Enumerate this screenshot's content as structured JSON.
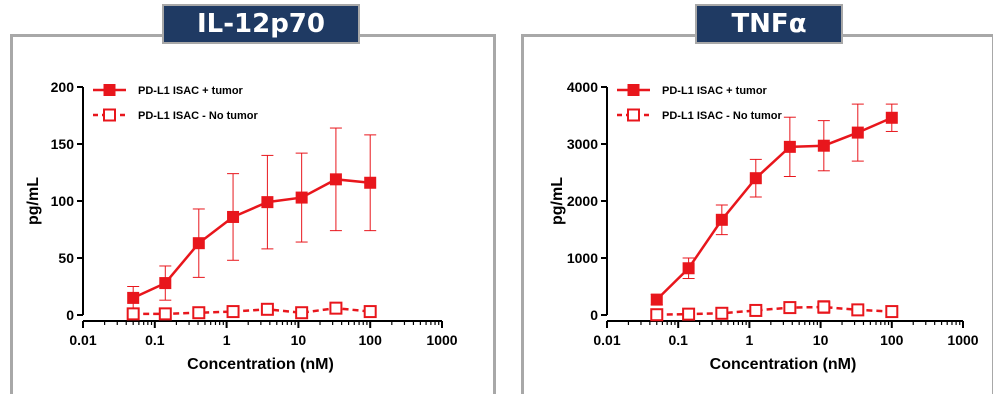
{
  "chart_data": [
    {
      "type": "line",
      "title": "IL-12p70",
      "xlabel": "Concentration (nM)",
      "ylabel": "pg/mL",
      "xscale": "log",
      "xlim": [
        0.01,
        1000
      ],
      "ylim": [
        0,
        200
      ],
      "x_ticks": [
        0.01,
        0.1,
        1,
        10,
        100,
        1000
      ],
      "x_tick_labels": [
        "0.01",
        "0.1",
        "1",
        "10",
        "100",
        "1000"
      ],
      "y_ticks": [
        0,
        50,
        100,
        150,
        200
      ],
      "y_tick_labels": [
        "0",
        "50",
        "100",
        "150",
        "200"
      ],
      "grid": false,
      "legend": "top-left",
      "colors": {
        "series": "#e8161c",
        "frame": "#a8a8a8",
        "title_bg": "#1f3a63"
      },
      "series": [
        {
          "name": "PD-L1 ISAC + tumor",
          "marker": "filled-square",
          "line": "solid",
          "x": [
            0.05,
            0.14,
            0.41,
            1.23,
            3.7,
            11.1,
            33.3,
            100
          ],
          "y": [
            15,
            28,
            63,
            86,
            99,
            103,
            119,
            116
          ],
          "err": [
            10,
            15,
            30,
            38,
            41,
            39,
            45,
            42
          ]
        },
        {
          "name": "PD-L1 ISAC - No tumor",
          "marker": "open-square",
          "line": "dashed",
          "x": [
            0.05,
            0.14,
            0.41,
            1.23,
            3.7,
            11.1,
            33.3,
            100
          ],
          "y": [
            1,
            1,
            2,
            3,
            5,
            2,
            6,
            3
          ],
          "err": [
            0,
            0,
            0,
            1,
            1,
            0,
            1,
            0
          ]
        }
      ]
    },
    {
      "type": "line",
      "title": "TNFα",
      "xlabel": "Concentration (nM)",
      "ylabel": "pg/mL",
      "xscale": "log",
      "xlim": [
        0.01,
        1000
      ],
      "ylim": [
        0,
        4000
      ],
      "x_ticks": [
        0.01,
        0.1,
        1,
        10,
        100,
        1000
      ],
      "x_tick_labels": [
        "0.01",
        "0.1",
        "1",
        "10",
        "100",
        "1000"
      ],
      "y_ticks": [
        0,
        1000,
        2000,
        3000,
        4000
      ],
      "y_tick_labels": [
        "0",
        "1000",
        "2000",
        "3000",
        "4000"
      ],
      "grid": false,
      "legend": "top-left",
      "colors": {
        "series": "#e8161c",
        "frame": "#a8a8a8",
        "title_bg": "#1f3a63"
      },
      "series": [
        {
          "name": "PD-L1 ISAC + tumor",
          "marker": "filled-square",
          "line": "solid",
          "x": [
            0.05,
            0.14,
            0.41,
            1.23,
            3.7,
            11.1,
            33.3,
            100
          ],
          "y": [
            270,
            820,
            1670,
            2400,
            2950,
            2970,
            3200,
            3460
          ],
          "err": [
            90,
            180,
            260,
            330,
            520,
            440,
            500,
            240
          ]
        },
        {
          "name": "PD-L1 ISAC - No tumor",
          "marker": "open-square",
          "line": "dashed",
          "x": [
            0.05,
            0.14,
            0.41,
            1.23,
            3.7,
            11.1,
            33.3,
            100
          ],
          "y": [
            5,
            15,
            30,
            80,
            130,
            140,
            90,
            60
          ],
          "err": [
            0,
            0,
            0,
            40,
            90,
            110,
            40,
            30
          ]
        }
      ]
    }
  ]
}
